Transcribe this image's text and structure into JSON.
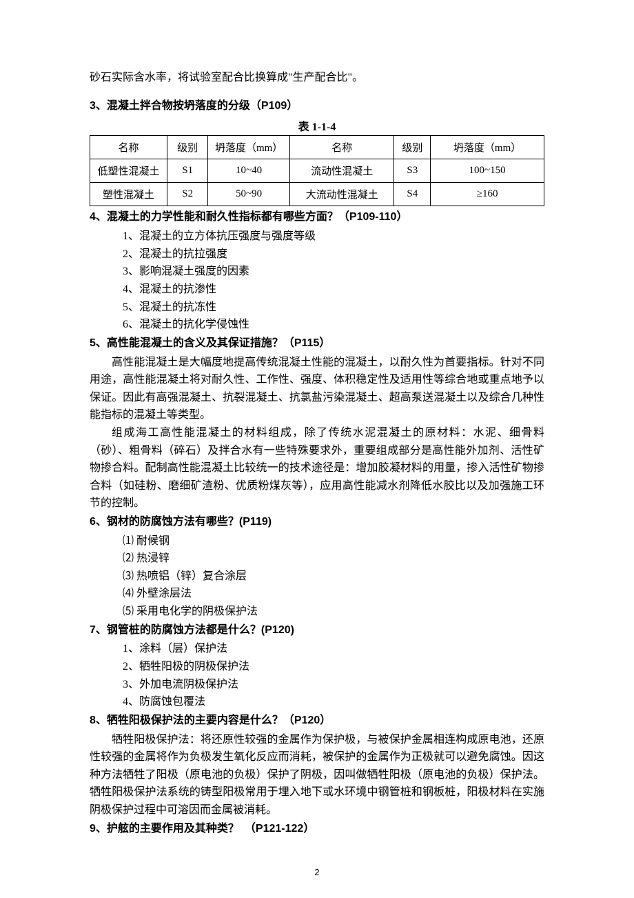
{
  "intro_line": "砂石实际含水率，将试验室配合比换算成\"生产配合比\"。",
  "section3": {
    "num": "3",
    "title": "、混凝土拌合物按坍落度的分级（",
    "ref": "P109",
    "tail": "）",
    "caption": "表 1-1-4",
    "table": {
      "headers": [
        "名称",
        "级别",
        "坍落度（mm）",
        "名称",
        "级别",
        "坍落度（mm）"
      ],
      "rows": [
        [
          "低塑性混凝土",
          "S1",
          "10~40",
          "流动性混凝土",
          "S3",
          "100~150"
        ],
        [
          "塑性混凝土",
          "S2",
          "50~90",
          "大流动性混凝土",
          "S4",
          "≥160"
        ]
      ],
      "col_widths": [
        "17%",
        "9%",
        "18%",
        "23%",
        "8%",
        "25%"
      ]
    }
  },
  "section4": {
    "num": "4",
    "title": "、混凝土的力学性能和耐久性指标都有哪些方面？（",
    "ref": "P109-110",
    "tail": "）",
    "items": [
      "1、混凝土的立方体抗压强度与强度等级",
      "2、混凝土的抗拉强度",
      "3、影响混凝土强度的因素",
      "4、混凝土的抗渗性",
      "5、混凝土的抗冻性",
      "6、混凝土的抗化学侵蚀性"
    ]
  },
  "section5": {
    "num": "5",
    "title": "、高性能混凝土的含义及其保证措施？（",
    "ref": "P115",
    "tail": "）",
    "paras": [
      "高性能混凝土是大幅度地提高传统混凝土性能的混凝土，以耐久性为首要指标。针对不同用途，高性能混凝土将对耐久性、工作性、强度、体积稳定性及适用性等综合地或重点地予以保证。因此有高强混凝土、抗裂混凝土、抗氯盐污染混凝土、超高泵送混凝土以及综合几种性能指标的混凝土等类型。",
      "组成海工高性能混凝土的材料组成，除了传统水泥混凝土的原材料：水泥、细骨料（砂）、粗骨料（碎石）及拌合水有一些特殊要求外，重要组成部分是高性能外加剂、活性矿物掺合料。配制高性能混凝土比较统一的技术途径是：增加胶凝材料的用量，掺入活性矿物掺合料（如硅粉、磨细矿渣粉、优质粉煤灰等），应用高性能减水剂降低水胶比以及加强施工环节的控制。"
    ]
  },
  "section6": {
    "num": "6",
    "title": "、钢材的防腐蚀方法有哪些？",
    "ref": "(P119)",
    "items": [
      "⑴ 耐候钢",
      "⑵ 热浸锌",
      "⑶ 热喷铝（锌）复合涂层",
      "⑷ 外壁涂层法",
      "⑸ 采用电化学的阴极保护法"
    ]
  },
  "section7": {
    "num": "7",
    "title": "、钢管桩的防腐蚀方法都是什么？",
    "ref": "(P120)",
    "items": [
      "1、涂料（层）保护法",
      "2、牺牲阳极的阴极保护法",
      "3、外加电流阴极保护法",
      "4、防腐蚀包覆法"
    ]
  },
  "section8": {
    "num": "8",
    "title": "、牺牲阳极保护法的主要内容是什么？（",
    "ref": "P120",
    "tail": "）",
    "para": "牺牲阳极保护法：将还原性较强的金属作为保护极，与被保护金属相连构成原电池，还原性较强的金属将作为负极发生氧化反应而消耗，被保护的金属作为正极就可以避免腐蚀。因这种方法牺牲了阳极（原电池的负极）保护了阴极，因叫做牺牲阳极（原电池的负极）保护法。牺牲阳极保护法系统的铸型阳极常用于埋入地下或水环境中钢管桩和钢板桩，阳极材料在实施阴极保护过程中可溶因而金属被消耗。"
  },
  "section9": {
    "num": "9",
    "title": "、护舷的主要作用及其种类？　（",
    "ref": "P121-122",
    "tail": "）"
  },
  "page_number": "2"
}
